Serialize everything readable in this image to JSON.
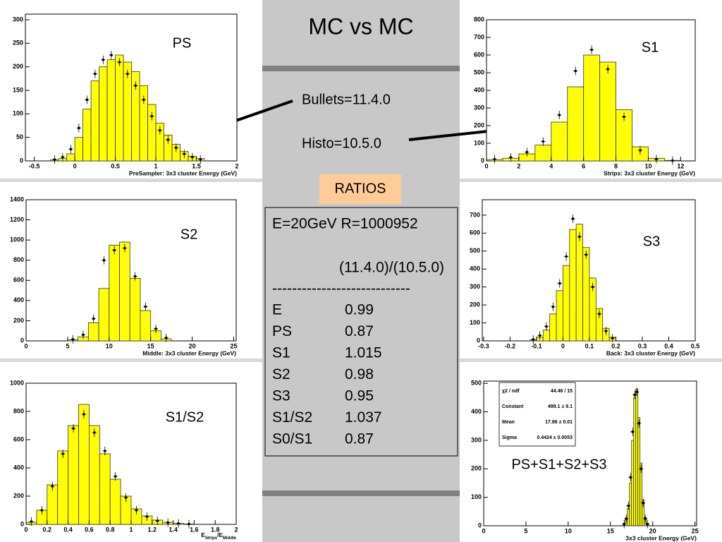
{
  "title": "MC vs MC",
  "bullets": "Bullets=11.4.0",
  "histo": "Histo=10.5.0",
  "ratios_button": "RATIOS",
  "table": {
    "header": "E=20GeV R=1000952",
    "subheader": "(11.4.0)/(10.5.0)",
    "separator": "----------------------------",
    "rows": [
      [
        "E",
        0.99
      ],
      [
        "PS",
        0.87
      ],
      [
        "S1",
        1.015
      ],
      [
        "S2",
        0.98
      ],
      [
        "S3",
        0.95
      ],
      [
        "S1/S2",
        1.037
      ],
      [
        "S0/S1",
        0.87
      ]
    ]
  },
  "chart_data": [
    {
      "type": "histogram",
      "label": "PS",
      "x_label": "PreSampler: 3x3 cluster Energy (GeV)",
      "bins": [
        -0.3,
        -0.2,
        -0.1,
        0,
        0.1,
        0.2,
        0.3,
        0.4,
        0.5,
        0.6,
        0.7,
        0.8,
        0.9,
        1.0,
        1.1,
        1.2,
        1.3,
        1.4,
        1.5,
        1.6
      ],
      "counts": [
        2,
        5,
        15,
        50,
        110,
        170,
        200,
        215,
        225,
        210,
        190,
        160,
        120,
        80,
        55,
        35,
        20,
        10,
        5
      ],
      "points": {
        "x": [
          -0.25,
          -0.15,
          -0.05,
          0.05,
          0.15,
          0.25,
          0.35,
          0.45,
          0.55,
          0.65,
          0.75,
          0.85,
          0.95,
          1.05,
          1.15,
          1.25,
          1.35,
          1.45,
          1.55
        ],
        "values": [
          3,
          8,
          25,
          70,
          130,
          185,
          215,
          225,
          210,
          185,
          160,
          130,
          95,
          65,
          45,
          28,
          15,
          8,
          3
        ]
      },
      "color": "#ffff00",
      "xlim": [
        -0.61,
        2
      ],
      "ylim": [
        0,
        312
      ],
      "xticks": [
        -0.5,
        0,
        0.5,
        1,
        1.5,
        2
      ],
      "yticks": [
        0,
        50,
        100,
        150,
        200,
        250,
        300
      ]
    },
    {
      "type": "histogram",
      "label": "S1",
      "x_label": "Strips: 3x3 cluster Energy (GeV)",
      "bins": [
        0,
        1,
        2,
        3,
        4,
        5,
        6,
        7,
        8,
        9,
        10,
        11,
        12
      ],
      "counts": [
        8,
        15,
        40,
        90,
        220,
        420,
        600,
        560,
        290,
        80,
        15,
        3
      ],
      "points": {
        "x": [
          0.5,
          1.5,
          2.5,
          3.5,
          4.5,
          5.5,
          6.5,
          7.5,
          8.5,
          9.5,
          10.5,
          11.5
        ],
        "values": [
          10,
          20,
          50,
          110,
          260,
          510,
          630,
          520,
          250,
          60,
          10,
          2
        ]
      },
      "color": "#ffff00",
      "xlim": [
        0,
        12.9
      ],
      "ylim": [
        0,
        800
      ],
      "xticks": [
        0,
        2,
        4,
        6,
        8,
        10,
        12
      ],
      "yticks": [
        0,
        100,
        200,
        300,
        400,
        500,
        600,
        700,
        800
      ]
    },
    {
      "type": "histogram",
      "label": "S2",
      "x_label": "Middle: 3x3 cluster Energy (GeV)",
      "bins": [
        5,
        6.25,
        7.5,
        8.75,
        10,
        11.25,
        12.5,
        13.75,
        15,
        16.25,
        17.5
      ],
      "counts": [
        10,
        40,
        180,
        520,
        950,
        980,
        620,
        300,
        100,
        20
      ],
      "points": {
        "x": [
          5.625,
          6.875,
          8.125,
          9.375,
          10.625,
          11.875,
          13.125,
          14.375,
          15.625,
          16.875
        ],
        "values": [
          15,
          60,
          220,
          800,
          900,
          920,
          640,
          340,
          120,
          30
        ]
      },
      "color": "#ffff00",
      "xlim": [
        0,
        25.3
      ],
      "ylim": [
        0,
        1400
      ],
      "xticks": [
        0,
        5,
        10,
        15,
        20,
        25
      ],
      "yticks": [
        0,
        200,
        400,
        600,
        800,
        1000,
        1200,
        1400
      ]
    },
    {
      "type": "histogram",
      "label": "S3",
      "x_label": "Back: 3x3 cluster Energy (GeV)",
      "bins": [
        -0.125,
        -0.1,
        -0.075,
        -0.05,
        -0.025,
        0,
        0.025,
        0.05,
        0.075,
        0.1,
        0.125,
        0.15,
        0.175,
        0.2
      ],
      "counts": [
        5,
        20,
        60,
        150,
        280,
        420,
        620,
        650,
        520,
        350,
        180,
        70,
        20
      ],
      "points": {
        "x": [
          -0.1125,
          -0.0875,
          -0.0625,
          -0.0375,
          -0.0125,
          0.0125,
          0.0375,
          0.0625,
          0.0875,
          0.1125,
          0.1375,
          0.1625,
          0.1875
        ],
        "values": [
          8,
          30,
          80,
          190,
          320,
          470,
          680,
          580,
          480,
          300,
          150,
          55,
          15
        ]
      },
      "color": "#ffff00",
      "xlim": [
        -0.305,
        0.5
      ],
      "ylim": [
        0,
        786
      ],
      "xticks": [
        -0.3,
        -0.2,
        -0.1,
        0,
        0.1,
        0.2,
        0.3,
        0.4,
        0.5
      ],
      "yticks": [
        0,
        100,
        200,
        300,
        400,
        500,
        600,
        700
      ]
    },
    {
      "type": "histogram",
      "label": "S1/S2",
      "x_label_parts": [
        "E",
        "Strips",
        "/E",
        "Middle"
      ],
      "bins": [
        0,
        0.1,
        0.2,
        0.3,
        0.4,
        0.5,
        0.6,
        0.7,
        0.8,
        0.9,
        1.0,
        1.1,
        1.2,
        1.3,
        1.4,
        1.5,
        1.6
      ],
      "counts": [
        15,
        100,
        280,
        520,
        700,
        850,
        700,
        500,
        320,
        200,
        110,
        60,
        30,
        15,
        8,
        3
      ],
      "points": {
        "x": [
          0.05,
          0.15,
          0.25,
          0.35,
          0.45,
          0.55,
          0.65,
          0.75,
          0.85,
          0.95,
          1.05,
          1.15,
          1.25,
          1.35,
          1.45,
          1.55
        ],
        "values": [
          20,
          100,
          270,
          500,
          680,
          780,
          650,
          520,
          340,
          190,
          100,
          55,
          25,
          12,
          6,
          2
        ]
      },
      "color": "#ffff00",
      "xlim": [
        0,
        2
      ],
      "ylim": [
        0,
        1000
      ],
      "xticks": [
        0,
        0.2,
        0.4,
        0.6,
        0.8,
        1,
        1.2,
        1.4,
        1.6,
        1.8,
        2
      ],
      "yticks": [
        0,
        200,
        400,
        600,
        800,
        1000
      ]
    },
    {
      "type": "histogram",
      "label": "PS+S1+S2+S3",
      "x_label": "3x3 cluster Energy (GeV)",
      "bins": [
        16.5,
        16.75,
        17,
        17.25,
        17.5,
        17.75,
        18,
        18.25,
        18.5,
        18.75,
        19,
        19.25,
        19.5
      ],
      "counts": [
        5,
        20,
        60,
        150,
        300,
        450,
        480,
        380,
        220,
        90,
        30,
        8
      ],
      "points": {
        "x": [
          16.625,
          16.875,
          17.125,
          17.375,
          17.625,
          17.875,
          18.125,
          18.375,
          18.625,
          18.875,
          19.125,
          19.375
        ],
        "values": [
          6,
          25,
          70,
          170,
          330,
          460,
          470,
          360,
          200,
          80,
          25,
          6
        ]
      },
      "stats": [
        [
          "χ2 / ndf",
          "44.46 / 15"
        ],
        [
          "Constant",
          "499.1 ± 9.1"
        ],
        [
          "Mean",
          "17.86 ± 0.01"
        ],
        [
          "Sigma",
          "0.4424 ± 0.0053"
        ]
      ],
      "color": "#ffff00",
      "xlim": [
        0,
        25.2
      ],
      "ylim": [
        0,
        508
      ],
      "xticks": [
        0,
        5,
        10,
        15,
        20,
        25
      ],
      "yticks": [
        0,
        100,
        200,
        300,
        400,
        500
      ]
    }
  ]
}
